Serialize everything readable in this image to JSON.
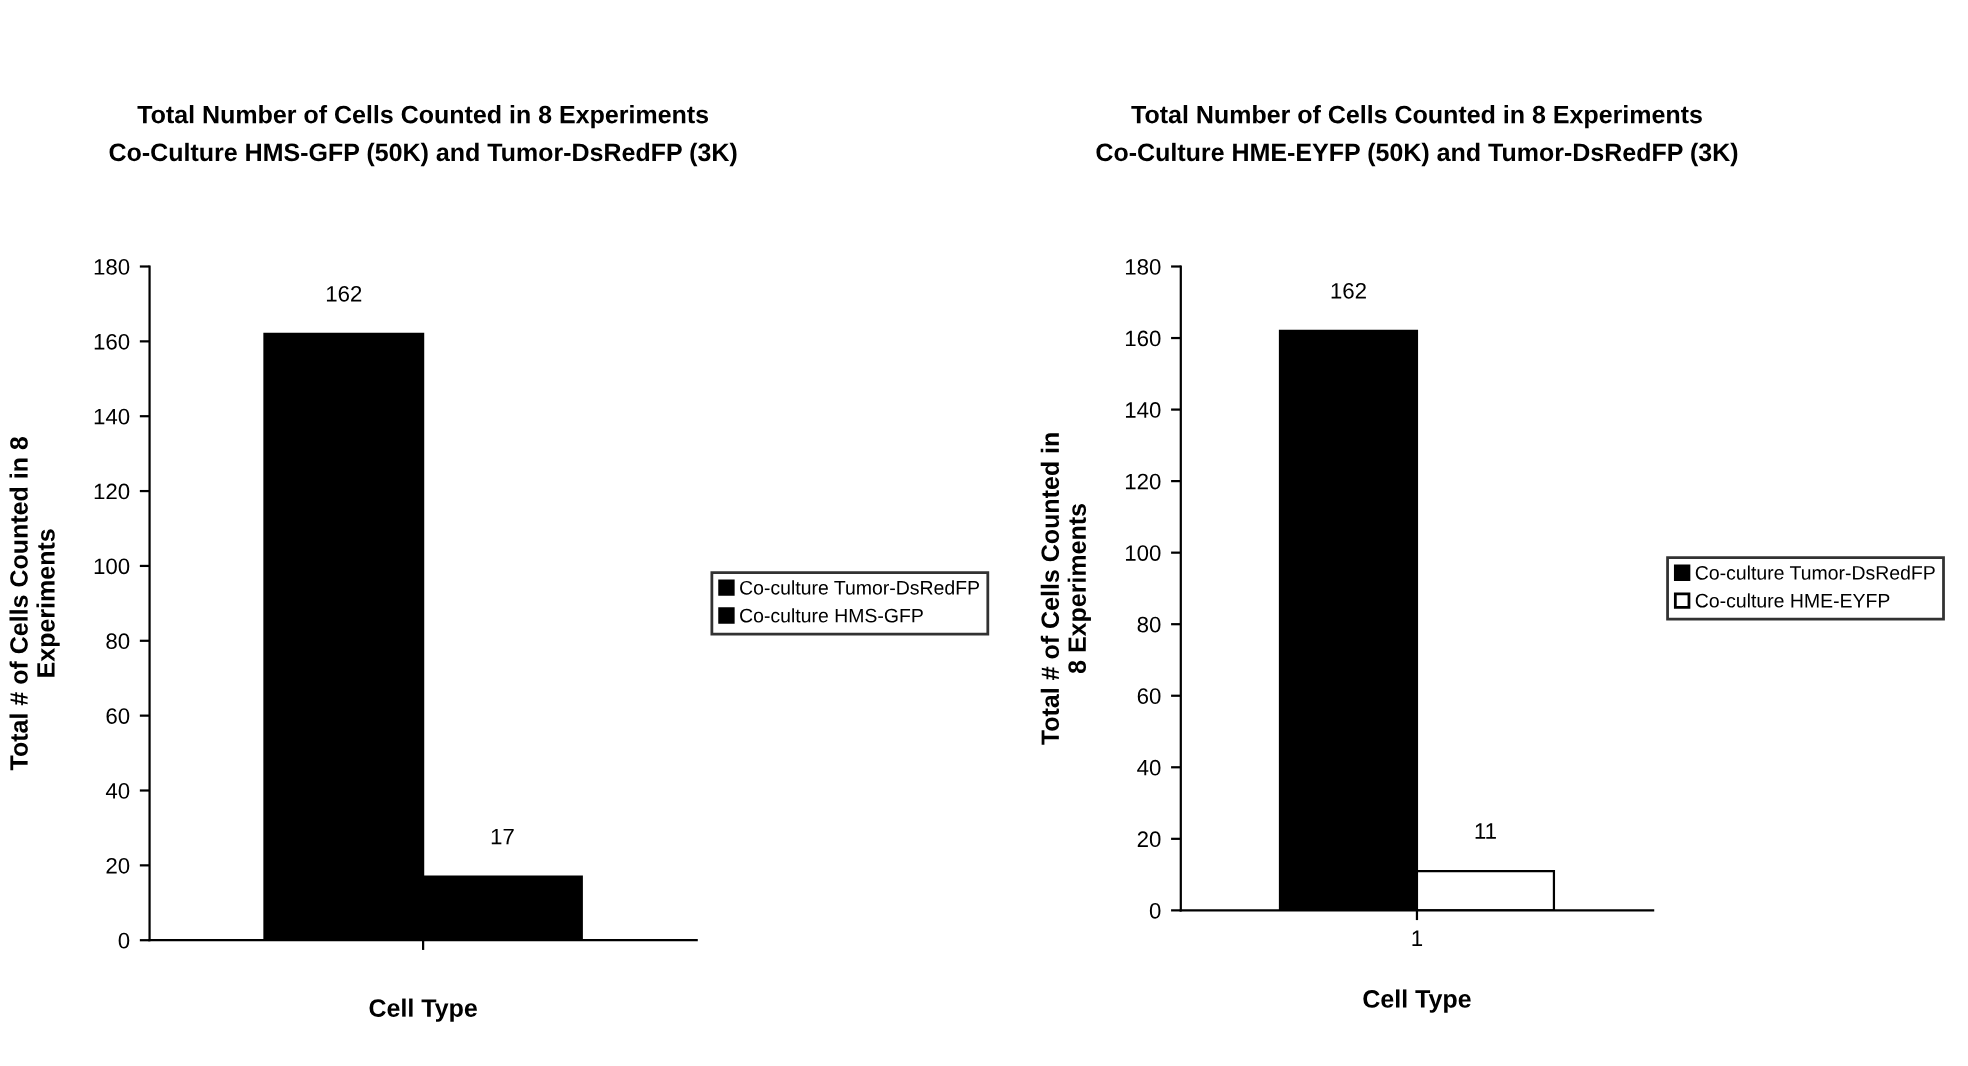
{
  "chart_data": [
    {
      "type": "bar",
      "title": "Total Number of Cells Counted in 8 Experiments\nCo-Culture HMS-GFP (50K) and Tumor-DsRedFP (3K)",
      "xlabel": "Cell Type",
      "ylabel": "Total # of Cells Counted in 8\nExperiments",
      "categories": [
        null
      ],
      "series": [
        {
          "name": "Co-culture Tumor-DsRedFP",
          "color": "#000000",
          "values": [
            162
          ]
        },
        {
          "name": "Co-culture HMS-GFP",
          "color": "#000000",
          "values": [
            17
          ]
        }
      ],
      "ylim": [
        0,
        180
      ],
      "yticks": [
        0,
        20,
        40,
        60,
        80,
        100,
        120,
        140,
        160,
        180
      ],
      "data_labels": true,
      "legend": "right",
      "grid": false
    },
    {
      "type": "bar",
      "title": "Total Number of Cells Counted in 8 Experiments\nCo-Culture HME-EYFP (50K) and Tumor-DsRedFP (3K)",
      "xlabel": "Cell Type",
      "ylabel": "Total # of Cells Counted in\n8 Experiments",
      "categories": [
        "1"
      ],
      "series": [
        {
          "name": "Co-culture Tumor-DsRedFP",
          "color": "#000000",
          "values": [
            162
          ]
        },
        {
          "name": "Co-culture HME-EYFP",
          "color": "#ffffff",
          "values": [
            11
          ]
        }
      ],
      "ylim": [
        0,
        180
      ],
      "yticks": [
        0,
        20,
        40,
        60,
        80,
        100,
        120,
        140,
        160,
        180
      ],
      "data_labels": true,
      "legend": "right",
      "grid": false
    }
  ]
}
